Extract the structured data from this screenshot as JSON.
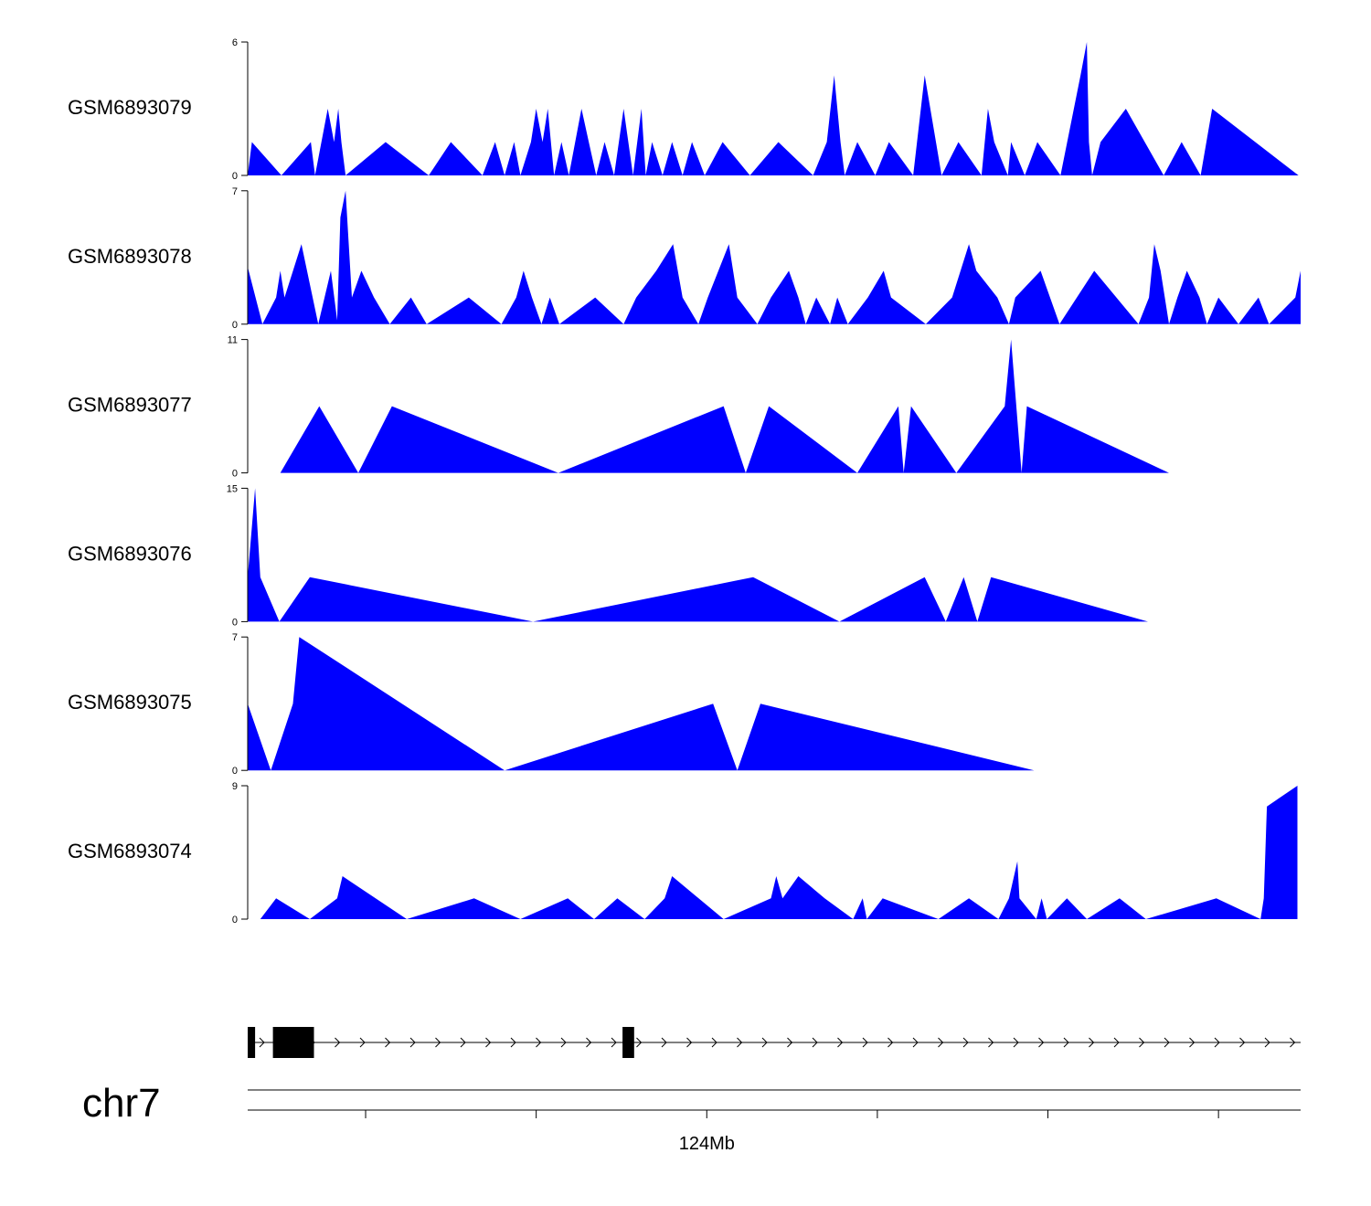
{
  "chart_data": {
    "type": "area",
    "chromosome": "chr7",
    "fill_color": "#0000ff",
    "axis_color": "#000000",
    "x_axis": {
      "range": [
        0,
        1
      ],
      "major_tick_label": "124Mb",
      "major_tick_value": 0.436,
      "tick_values": [
        0.112,
        0.274,
        0.436,
        0.598,
        0.76,
        0.922
      ]
    },
    "tracks": [
      {
        "name": "GSM6893079",
        "ylim": [
          0,
          6
        ],
        "y_ticks": [
          "0",
          "6"
        ],
        "x": [
          0.0,
          0.004,
          0.032,
          0.06,
          0.064,
          0.076,
          0.082,
          0.086,
          0.089,
          0.093,
          0.131,
          0.172,
          0.193,
          0.223,
          0.235,
          0.244,
          0.253,
          0.259,
          0.269,
          0.274,
          0.28,
          0.285,
          0.291,
          0.298,
          0.305,
          0.317,
          0.324,
          0.331,
          0.339,
          0.348,
          0.357,
          0.366,
          0.374,
          0.378,
          0.384,
          0.394,
          0.403,
          0.413,
          0.422,
          0.434,
          0.451,
          0.477,
          0.504,
          0.537,
          0.55,
          0.557,
          0.563,
          0.567,
          0.579,
          0.596,
          0.609,
          0.632,
          0.643,
          0.659,
          0.675,
          0.697,
          0.703,
          0.709,
          0.722,
          0.725,
          0.738,
          0.75,
          0.772,
          0.791,
          0.797,
          0.799,
          0.802,
          0.81,
          0.834,
          0.87,
          0.887,
          0.905,
          0.916,
          0.998
        ],
        "y": [
          0,
          1.5,
          0,
          1.5,
          0,
          3,
          1.5,
          3,
          1.5,
          0,
          1.5,
          0,
          1.5,
          0,
          1.5,
          0,
          1.5,
          0,
          1.5,
          3,
          1.5,
          3,
          0,
          1.5,
          0,
          3,
          1.5,
          0,
          1.5,
          0,
          3,
          0,
          3,
          0,
          1.5,
          0,
          1.5,
          0,
          1.5,
          0,
          1.5,
          0,
          1.5,
          0,
          1.5,
          4.5,
          1.5,
          0,
          1.5,
          0,
          1.5,
          0,
          4.5,
          0,
          1.5,
          0,
          3,
          1.5,
          0,
          1.5,
          0,
          1.5,
          0,
          4.5,
          6,
          1.5,
          0,
          1.5,
          3,
          0,
          1.5,
          0,
          3,
          0
        ]
      },
      {
        "name": "GSM6893078",
        "ylim": [
          0,
          7
        ],
        "y_ticks": [
          "0",
          "7"
        ],
        "x": [
          0.0,
          0.014,
          0.027,
          0.031,
          0.035,
          0.051,
          0.067,
          0.079,
          0.085,
          0.088,
          0.093,
          0.099,
          0.108,
          0.12,
          0.135,
          0.155,
          0.17,
          0.21,
          0.241,
          0.255,
          0.262,
          0.27,
          0.279,
          0.287,
          0.296,
          0.33,
          0.357,
          0.369,
          0.388,
          0.404,
          0.413,
          0.428,
          0.437,
          0.457,
          0.465,
          0.484,
          0.497,
          0.514,
          0.523,
          0.53,
          0.54,
          0.553,
          0.56,
          0.57,
          0.589,
          0.604,
          0.611,
          0.644,
          0.669,
          0.685,
          0.692,
          0.712,
          0.723,
          0.729,
          0.753,
          0.771,
          0.804,
          0.846,
          0.856,
          0.861,
          0.867,
          0.875,
          0.883,
          0.892,
          0.904,
          0.911,
          0.922,
          0.941,
          0.96,
          0.97,
          0.995,
          1.0
        ],
        "y": [
          3,
          0,
          1.4,
          2.8,
          1.4,
          4.2,
          0,
          2.8,
          0.2,
          5.6,
          7,
          1.4,
          2.8,
          1.4,
          0,
          1.4,
          0,
          1.4,
          0,
          1.4,
          2.8,
          1.4,
          0,
          1.4,
          0,
          1.4,
          0,
          1.4,
          2.8,
          4.2,
          1.4,
          0,
          1.4,
          4.2,
          1.4,
          0,
          1.4,
          2.8,
          1.4,
          0,
          1.4,
          0,
          1.4,
          0,
          1.4,
          2.8,
          1.4,
          0,
          1.4,
          4.2,
          2.8,
          1.4,
          0,
          1.4,
          2.8,
          0,
          2.8,
          0,
          1.4,
          4.2,
          2.8,
          0,
          1.4,
          2.8,
          1.4,
          0,
          1.4,
          0,
          1.4,
          0,
          1.4,
          2.8
        ]
      },
      {
        "name": "GSM6893077",
        "ylim": [
          0,
          11
        ],
        "y_ticks": [
          "0",
          "11"
        ],
        "x": [
          0.031,
          0.068,
          0.105,
          0.137,
          0.295,
          0.452,
          0.473,
          0.495,
          0.579,
          0.618,
          0.623,
          0.63,
          0.673,
          0.719,
          0.725,
          0.735,
          0.74,
          0.875
        ],
        "y": [
          0,
          5.5,
          0,
          5.5,
          0,
          5.5,
          0,
          5.5,
          0,
          5.5,
          0,
          5.5,
          0,
          5.5,
          11,
          0,
          5.5,
          0
        ]
      },
      {
        "name": "GSM6893076",
        "ylim": [
          0,
          15
        ],
        "y_ticks": [
          "0",
          "15"
        ],
        "x": [
          0.0,
          0.007,
          0.012,
          0.03,
          0.059,
          0.271,
          0.48,
          0.562,
          0.643,
          0.663,
          0.68,
          0.693,
          0.706,
          0.855
        ],
        "y": [
          5,
          15,
          5,
          0,
          5,
          0,
          5,
          0,
          5,
          0,
          5,
          0,
          5,
          0
        ]
      },
      {
        "name": "GSM6893075",
        "ylim": [
          0,
          7
        ],
        "y_ticks": [
          "0",
          "7"
        ],
        "x": [
          0.0,
          0.022,
          0.043,
          0.049,
          0.244,
          0.442,
          0.465,
          0.487,
          0.747
        ],
        "y": [
          3.5,
          0,
          3.5,
          7,
          0,
          3.5,
          0,
          3.5,
          0
        ]
      },
      {
        "name": "GSM6893074",
        "ylim": [
          0,
          9
        ],
        "y_ticks": [
          "0",
          "9"
        ],
        "x": [
          0.012,
          0.027,
          0.059,
          0.085,
          0.09,
          0.151,
          0.215,
          0.259,
          0.304,
          0.329,
          0.351,
          0.377,
          0.396,
          0.403,
          0.452,
          0.497,
          0.502,
          0.508,
          0.523,
          0.548,
          0.575,
          0.584,
          0.588,
          0.603,
          0.656,
          0.685,
          0.713,
          0.723,
          0.731,
          0.733,
          0.749,
          0.754,
          0.759,
          0.778,
          0.797,
          0.828,
          0.853,
          0.92,
          0.962,
          0.965,
          0.968,
          0.997
        ],
        "y": [
          0,
          1.4,
          0,
          1.4,
          2.9,
          0,
          1.4,
          0,
          1.4,
          0,
          1.4,
          0,
          1.4,
          2.9,
          0,
          1.4,
          2.9,
          1.4,
          2.9,
          1.4,
          0,
          1.4,
          0,
          1.4,
          0,
          1.4,
          0,
          1.4,
          3.9,
          1.4,
          0,
          1.4,
          0,
          1.4,
          0,
          1.4,
          0,
          1.4,
          0,
          1.4,
          7.6,
          9
        ]
      }
    ],
    "gene_model": {
      "strand": "+",
      "exons": [
        {
          "start": 0.0,
          "end": 0.007
        },
        {
          "start": 0.024,
          "end": 0.063
        },
        {
          "start": 0.356,
          "end": 0.367
        }
      ]
    }
  }
}
